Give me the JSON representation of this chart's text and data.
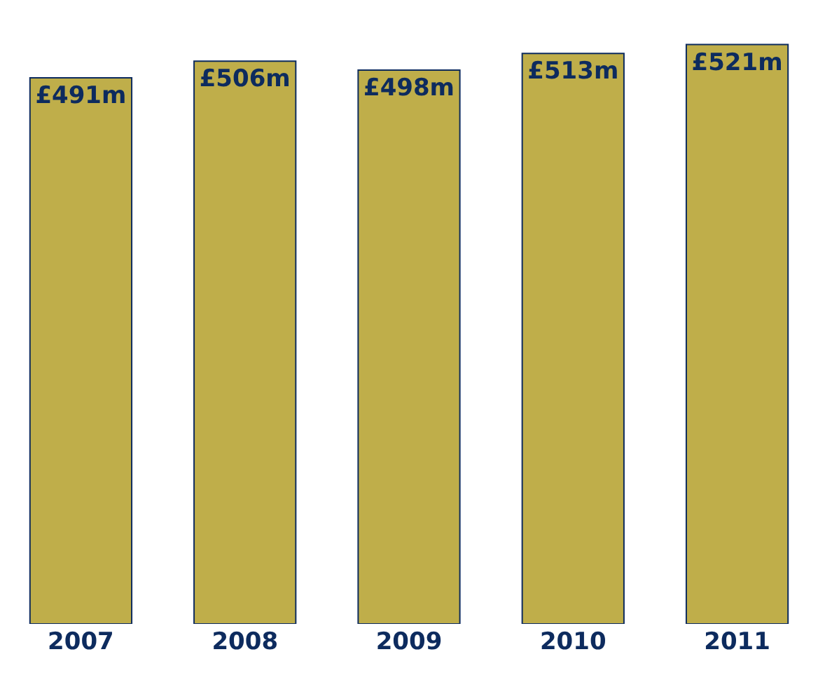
{
  "chart_data": {
    "type": "bar",
    "categories": [
      "2007",
      "2008",
      "2009",
      "2010",
      "2011"
    ],
    "values": [
      491,
      506,
      498,
      513,
      521
    ],
    "value_labels": [
      "£491m",
      "£506m",
      "£498m",
      "£513m",
      "£521m"
    ],
    "color": "#bfae4a",
    "grid": false
  }
}
